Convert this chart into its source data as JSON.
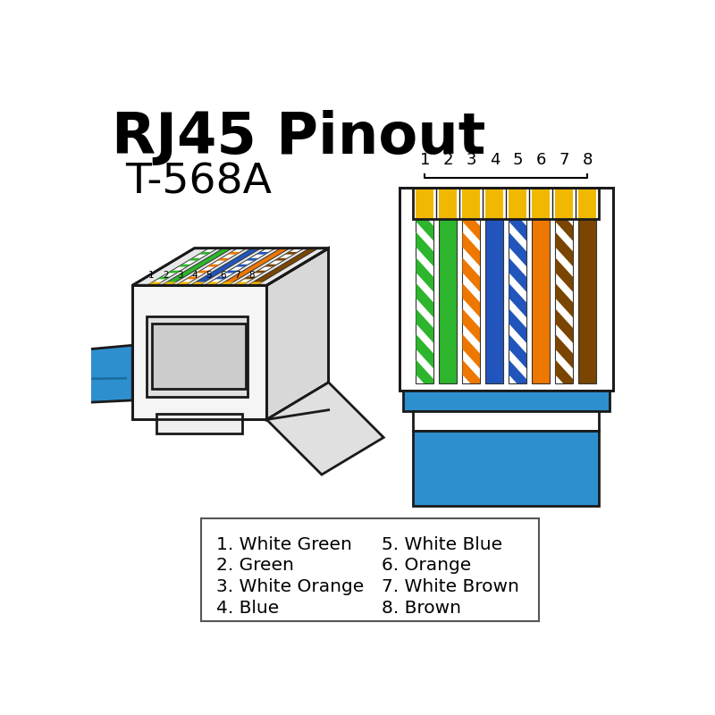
{
  "title_line1": "RJ45 Pinout",
  "title_line2": "T-568A",
  "background_color": "#ffffff",
  "cable_blue": "#2e8fcf",
  "connector_outline": "#1a1a1a",
  "wire_colors_T568A": [
    {
      "name": "White Green",
      "solid": "#ffffff",
      "stripe": "#2db52d"
    },
    {
      "name": "Green",
      "solid": "#2db52d",
      "stripe": null
    },
    {
      "name": "White Orange",
      "solid": "#ffffff",
      "stripe": "#ee7700"
    },
    {
      "name": "Blue",
      "solid": "#2255bb",
      "stripe": null
    },
    {
      "name": "White Blue",
      "solid": "#ffffff",
      "stripe": "#2255bb"
    },
    {
      "name": "Orange",
      "solid": "#ee7700",
      "stripe": null
    },
    {
      "name": "White Brown",
      "solid": "#ffffff",
      "stripe": "#7a4500"
    },
    {
      "name": "Brown",
      "solid": "#7a4500",
      "stripe": null
    }
  ],
  "pin_numbers": [
    "1",
    "2",
    "3",
    "4",
    "5",
    "6",
    "7",
    "8"
  ],
  "legend_left": [
    "1. White Green",
    "2. Green",
    "3. White Orange",
    "4. Blue"
  ],
  "legend_right": [
    "5. White Blue",
    "6. Orange",
    "7. White Brown",
    "8. Brown"
  ],
  "gold_color": "#f0b800"
}
